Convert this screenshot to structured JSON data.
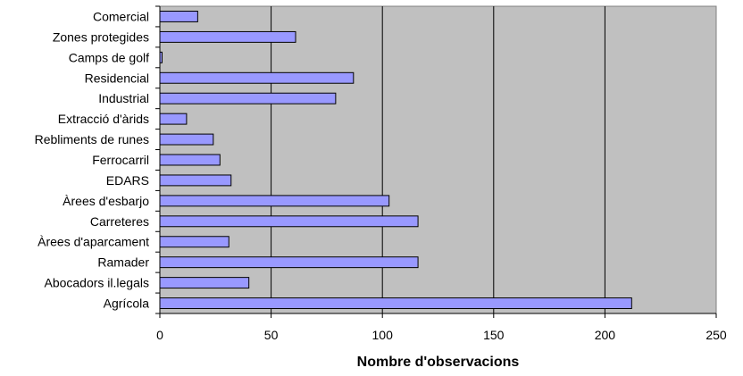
{
  "chart_data": {
    "type": "bar",
    "orientation": "horizontal",
    "title": "",
    "xlabel": "Nombre d'observacions",
    "ylabel": "",
    "xlim": [
      0,
      250
    ],
    "xticks": [
      "0",
      "50",
      "100",
      "150",
      "200",
      "250"
    ],
    "grid": true,
    "legend": "none",
    "categories": [
      "Comercial",
      "Zones protegides",
      "Camps de golf",
      "Residencial",
      "Industrial",
      "Extracció d'àrids",
      "Rebliments de runes",
      "Ferrocarril",
      "EDARS",
      "Àrees d'esbarjo",
      "Carreteres",
      "Àrees d'aparcament",
      "Ramader",
      "Abocadors il.legals",
      "Agrícola"
    ],
    "values": [
      17,
      61,
      1,
      87,
      79,
      12,
      24,
      27,
      32,
      103,
      116,
      31,
      116,
      40,
      212
    ],
    "colors": {
      "plot_bg": "#c0c0c0",
      "bar_fill": "#9999ff",
      "bar_stroke": "#000000",
      "grid": "#000000"
    }
  }
}
